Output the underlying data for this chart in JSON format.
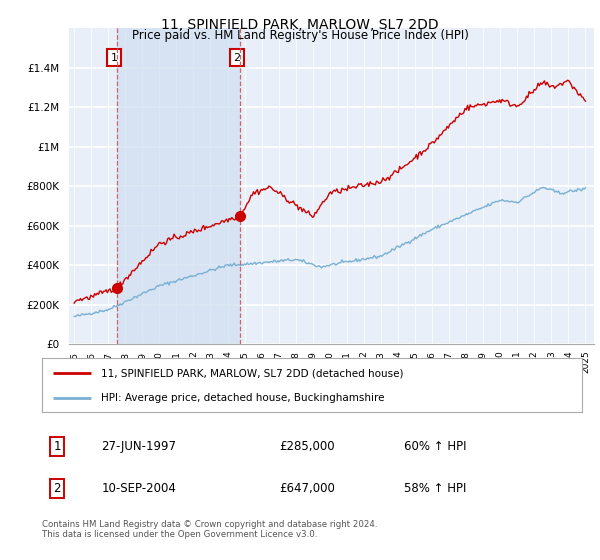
{
  "title": "11, SPINFIELD PARK, MARLOW, SL7 2DD",
  "subtitle": "Price paid vs. HM Land Registry's House Price Index (HPI)",
  "ylim": [
    0,
    1600000
  ],
  "yticks": [
    0,
    200000,
    400000,
    600000,
    800000,
    1000000,
    1200000,
    1400000
  ],
  "ytick_labels": [
    "£0",
    "£200K",
    "£400K",
    "£600K",
    "£800K",
    "£1M",
    "£1.2M",
    "£1.4M"
  ],
  "bg_color": "#e8eff8",
  "bg_shade_color": "#d0dff0",
  "grid_color": "#ffffff",
  "sale1_date": 1997.49,
  "sale1_price": 285000,
  "sale1_label": "1",
  "sale2_date": 2004.71,
  "sale2_price": 647000,
  "sale2_label": "2",
  "legend_line1": "11, SPINFIELD PARK, MARLOW, SL7 2DD (detached house)",
  "legend_line2": "HPI: Average price, detached house, Buckinghamshire",
  "line_color_red": "#cc0000",
  "line_color_blue": "#7ab0d4",
  "footnote": "Contains HM Land Registry data © Crown copyright and database right 2024.\nThis data is licensed under the Open Government Licence v3.0."
}
